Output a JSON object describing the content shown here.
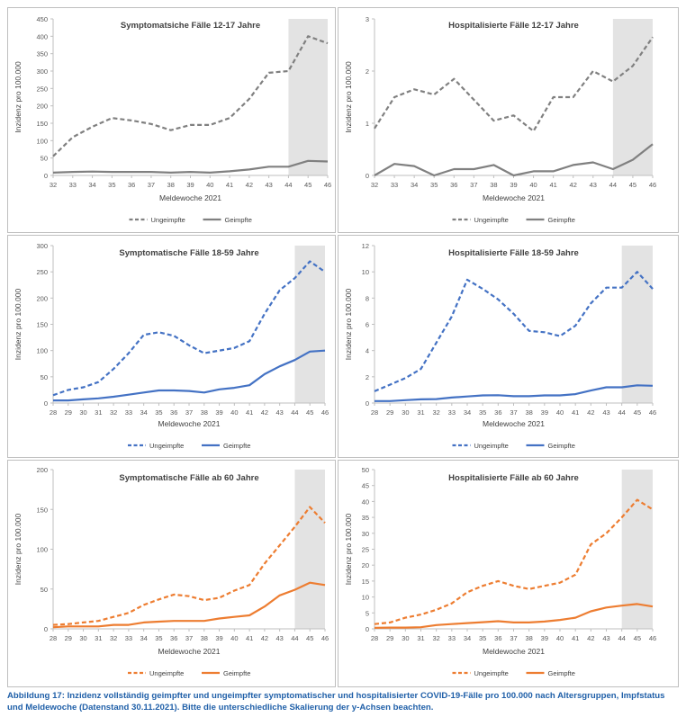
{
  "chart_data": [
    {
      "type": "line",
      "title": "Symptomatsiche Fälle 12-17 Jahre",
      "xlabel": "Meldewoche 2021",
      "ylabel": "Inzidenz pro 100.000",
      "x": [
        32,
        33,
        34,
        35,
        36,
        37,
        38,
        39,
        40,
        41,
        42,
        43,
        44,
        45,
        46
      ],
      "ylim": [
        0,
        450
      ],
      "yticks": [
        0,
        50,
        100,
        150,
        200,
        250,
        300,
        350,
        400,
        450
      ],
      "shade_from": 44,
      "color": "#808080",
      "series": [
        {
          "name": "Ungeimpfte",
          "dash": true,
          "values": [
            55,
            110,
            140,
            165,
            158,
            148,
            130,
            145,
            145,
            165,
            220,
            295,
            300,
            400,
            380
          ]
        },
        {
          "name": "Geimpfte",
          "dash": false,
          "values": [
            8,
            10,
            11,
            10,
            10,
            10,
            8,
            10,
            8,
            12,
            17,
            25,
            25,
            42,
            40
          ]
        }
      ]
    },
    {
      "type": "line",
      "title": "Hospitalisierte Fälle 12-17 Jahre",
      "xlabel": "Meldewoche 2021",
      "ylabel": "Inzidenz pro 100.000",
      "x": [
        32,
        33,
        34,
        35,
        36,
        37,
        38,
        39,
        40,
        41,
        42,
        43,
        44,
        45,
        46
      ],
      "ylim": [
        0,
        3
      ],
      "yticks": [
        0,
        1,
        2,
        3
      ],
      "shade_from": 44,
      "color": "#808080",
      "series": [
        {
          "name": "Ungeimpfte",
          "dash": true,
          "values": [
            0.9,
            1.5,
            1.65,
            1.55,
            1.85,
            1.45,
            1.05,
            1.15,
            0.85,
            1.5,
            1.5,
            2.0,
            1.8,
            2.1,
            2.65
          ]
        },
        {
          "name": "Geimpfte",
          "dash": false,
          "values": [
            0.0,
            0.22,
            0.18,
            0.0,
            0.12,
            0.12,
            0.2,
            0.0,
            0.08,
            0.08,
            0.2,
            0.25,
            0.12,
            0.3,
            0.6
          ]
        }
      ]
    },
    {
      "type": "line",
      "title": "Symptomatische Fälle 18-59 Jahre",
      "xlabel": "Meldewoche 2021",
      "ylabel": "Inzidenz pro 100.000",
      "x": [
        28,
        29,
        30,
        31,
        32,
        33,
        34,
        35,
        36,
        37,
        38,
        39,
        40,
        41,
        42,
        43,
        44,
        45,
        46
      ],
      "ylim": [
        0,
        300
      ],
      "yticks": [
        0,
        50,
        100,
        150,
        200,
        250,
        300
      ],
      "shade_from": 44,
      "color": "#4472c4",
      "series": [
        {
          "name": "Ungeimpfte",
          "dash": true,
          "values": [
            15,
            25,
            30,
            40,
            65,
            95,
            130,
            135,
            128,
            110,
            95,
            100,
            105,
            118,
            170,
            215,
            238,
            270,
            250
          ]
        },
        {
          "name": "Geimpfte",
          "dash": false,
          "values": [
            5,
            5,
            7,
            9,
            12,
            16,
            20,
            24,
            24,
            23,
            20,
            26,
            29,
            34,
            55,
            70,
            82,
            98,
            100
          ]
        }
      ]
    },
    {
      "type": "line",
      "title": "Hospitalisierte Fälle 18-59 Jahre",
      "xlabel": "Meldewoche 2021",
      "ylabel": "Inzidenz pro 100.000",
      "x": [
        28,
        29,
        30,
        31,
        32,
        33,
        34,
        35,
        36,
        37,
        38,
        39,
        40,
        41,
        42,
        43,
        44,
        45,
        46
      ],
      "ylim": [
        0,
        12
      ],
      "yticks": [
        0,
        2,
        4,
        6,
        8,
        10,
        12
      ],
      "shade_from": 44,
      "color": "#4472c4",
      "series": [
        {
          "name": "Ungeimpfte",
          "dash": true,
          "values": [
            0.9,
            1.4,
            1.9,
            2.6,
            4.6,
            6.6,
            9.4,
            8.7,
            7.9,
            6.8,
            5.5,
            5.4,
            5.1,
            5.9,
            7.6,
            8.8,
            8.8,
            10.0,
            8.7
          ]
        },
        {
          "name": "Geimpfte",
          "dash": false,
          "values": [
            0.15,
            0.15,
            0.22,
            0.28,
            0.3,
            0.42,
            0.5,
            0.58,
            0.6,
            0.52,
            0.52,
            0.58,
            0.58,
            0.68,
            0.95,
            1.2,
            1.2,
            1.35,
            1.32
          ]
        }
      ]
    },
    {
      "type": "line",
      "title": "Symptomatische Fälle ab 60 Jahre",
      "xlabel": "Meldewoche 2021",
      "ylabel": "Inzidenz pro 100.000",
      "x": [
        28,
        29,
        30,
        31,
        32,
        33,
        34,
        35,
        36,
        37,
        38,
        39,
        40,
        41,
        42,
        43,
        44,
        45,
        46
      ],
      "ylim": [
        0,
        200
      ],
      "yticks": [
        0,
        50,
        100,
        150,
        200
      ],
      "shade_from": 44,
      "color": "#ed7d31",
      "series": [
        {
          "name": "Ungeimpfte",
          "dash": true,
          "values": [
            5,
            6,
            8,
            10,
            15,
            20,
            30,
            37,
            43,
            41,
            36,
            39,
            48,
            55,
            82,
            105,
            128,
            153,
            133
          ]
        },
        {
          "name": "Geimpfte",
          "dash": false,
          "values": [
            2,
            3,
            3,
            3,
            5,
            5,
            8,
            9,
            10,
            10,
            10,
            13,
            15,
            17,
            28,
            42,
            49,
            58,
            55
          ]
        }
      ]
    },
    {
      "type": "line",
      "title": "Hospitalisierte Fälle ab 60 Jahre",
      "xlabel": "Meldewoche 2021",
      "ylabel": "Inzidenz pro 100.000",
      "x": [
        28,
        29,
        30,
        31,
        32,
        33,
        34,
        35,
        36,
        37,
        38,
        39,
        40,
        41,
        42,
        43,
        44,
        45,
        46
      ],
      "ylim": [
        0,
        50
      ],
      "yticks": [
        0,
        5,
        10,
        15,
        20,
        25,
        30,
        35,
        40,
        45,
        50
      ],
      "shade_from": 44,
      "color": "#ed7d31",
      "series": [
        {
          "name": "Ungeimpfte",
          "dash": true,
          "values": [
            1.5,
            2.0,
            3.5,
            4.5,
            6.0,
            8.0,
            11.5,
            13.5,
            15.0,
            13.5,
            12.5,
            13.5,
            14.5,
            17.0,
            26.5,
            30.0,
            35.0,
            40.5,
            37.5
          ]
        },
        {
          "name": "Geimpfte",
          "dash": false,
          "values": [
            0.3,
            0.4,
            0.4,
            0.5,
            1.2,
            1.5,
            1.8,
            2.1,
            2.4,
            2.0,
            2.0,
            2.3,
            2.8,
            3.5,
            5.5,
            6.7,
            7.3,
            7.8,
            7.0
          ]
        }
      ]
    }
  ],
  "caption": "Abbildung 17: Inzidenz vollständig geimpfter und ungeimpfter symptomatischer und hospitalisierter COVID-19-Fälle pro 100.000 nach Altersgruppen, Impfstatus und Meldewoche (Datenstand 30.11.2021). Bitte die unterschiedliche Skalierung der y-Achsen beachten."
}
